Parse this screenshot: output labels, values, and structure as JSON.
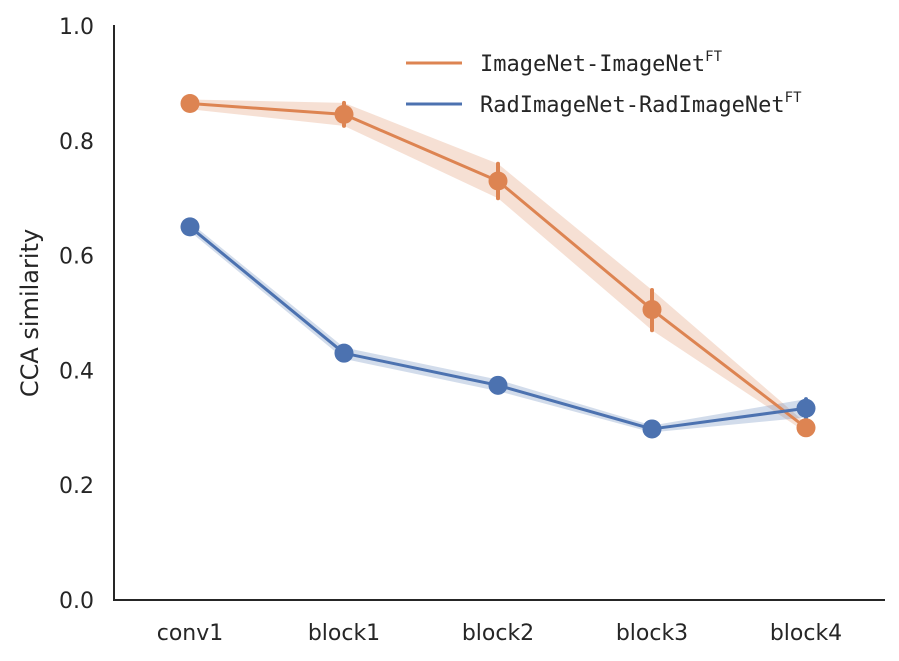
{
  "chart_data": {
    "type": "line",
    "title": "",
    "xlabel": "",
    "ylabel": "CCA similarity",
    "categories": [
      "conv1",
      "block1",
      "block2",
      "block3",
      "block4"
    ],
    "ylim": [
      0.0,
      1.0
    ],
    "yticks": [
      "0.0",
      "0.2",
      "0.4",
      "0.6",
      "0.8",
      "1.0"
    ],
    "grid": false,
    "legend_position": "top-right",
    "series": [
      {
        "name": "ImageNet-ImageNet",
        "name_superscript": "FT",
        "color": "#dd8452",
        "values": [
          0.865,
          0.846,
          0.73,
          0.506,
          0.3
        ],
        "ci_lower": [
          0.855,
          0.826,
          0.7,
          0.47,
          0.292
        ],
        "ci_upper": [
          0.872,
          0.866,
          0.76,
          0.54,
          0.308
        ]
      },
      {
        "name": "RadImageNet-RadImageNet",
        "name_superscript": "FT",
        "color": "#4c72b0",
        "values": [
          0.65,
          0.43,
          0.374,
          0.298,
          0.334
        ],
        "ci_lower": [
          0.642,
          0.42,
          0.364,
          0.292,
          0.318
        ],
        "ci_upper": [
          0.658,
          0.44,
          0.384,
          0.304,
          0.35
        ]
      }
    ]
  }
}
